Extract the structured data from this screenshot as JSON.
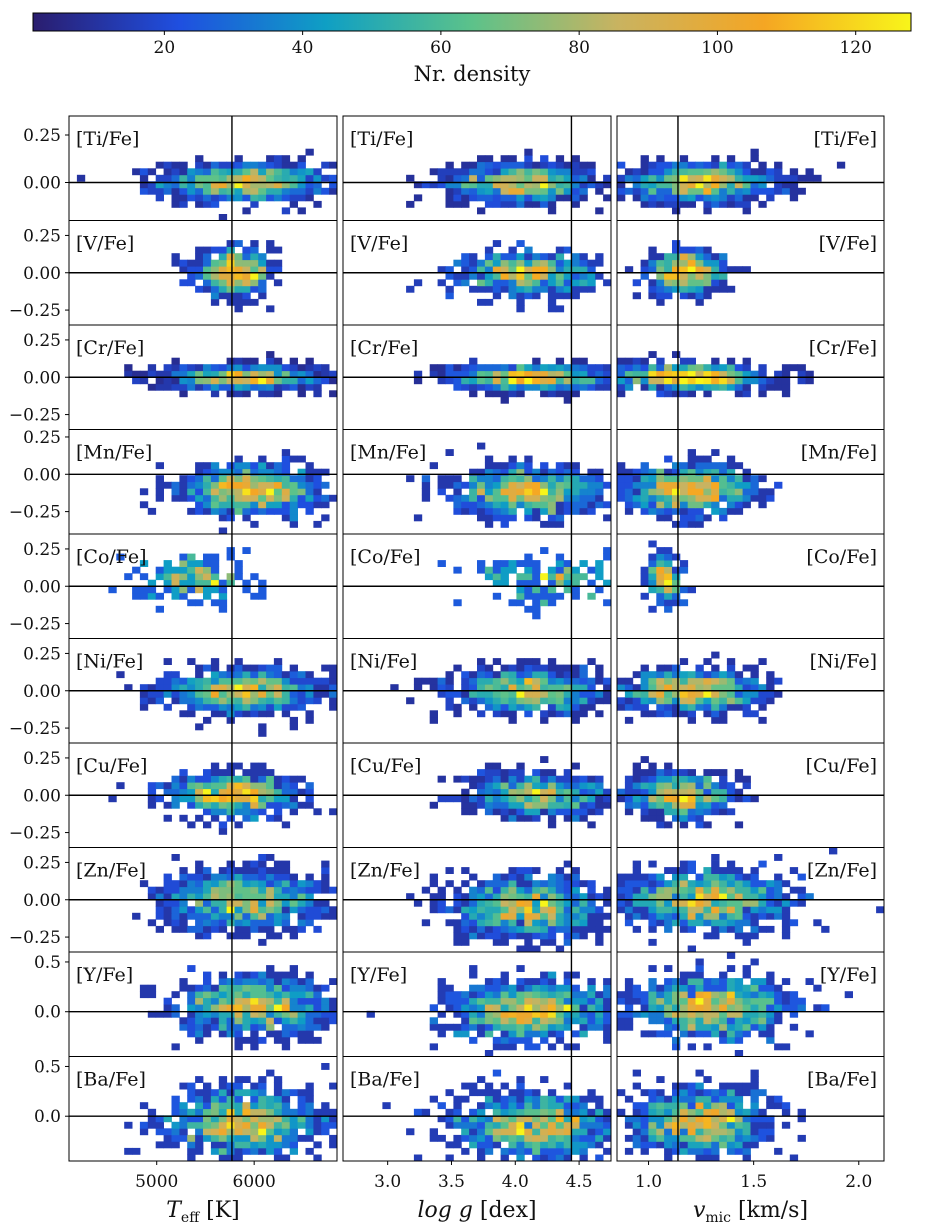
{
  "chart_data": {
    "type": "heatmap",
    "colorbar": {
      "label": "Nr. density",
      "ticks": [
        20,
        40,
        60,
        80,
        100,
        120
      ],
      "range": [
        1,
        128
      ],
      "colormap": [
        "#2a1d6e",
        "#1f4fe0",
        "#0f9fc4",
        "#5cc28a",
        "#c9b360",
        "#f5a623",
        "#f8f51a"
      ]
    },
    "columns": [
      {
        "name": "teff",
        "xlabel_main": "T",
        "xlabel_sub": "eff",
        "xlabel_unit": " [K]",
        "xlim": [
          4100,
          6850
        ],
        "xticks": [
          5000,
          6000
        ],
        "ref": 5772
      },
      {
        "name": "logg",
        "xlabel_main": "log g",
        "xlabel_sub": "",
        "xlabel_unit": " [dex]",
        "xlim": [
          2.65,
          4.75
        ],
        "xticks": [
          3.0,
          3.5,
          4.0,
          4.5
        ],
        "ref": 4.44
      },
      {
        "name": "vmic",
        "xlabel_main": "v",
        "xlabel_sub": "mic",
        "xlabel_unit": " [km/s]",
        "xlim": [
          0.85,
          2.12
        ],
        "xticks": [
          1.0,
          1.5,
          2.0
        ],
        "ref": 1.14
      }
    ],
    "rows": [
      {
        "element": "[Ti/Fe]",
        "ylim": [
          -0.2,
          0.35
        ],
        "yticks": [
          0.25,
          0.0
        ],
        "ytick_labels": [
          "0.25",
          "0.00"
        ],
        "spread": 0.07,
        "centers": [
          [
            5900,
            0.0
          ],
          [
            4.05,
            0.0
          ],
          [
            1.25,
            0.0
          ]
        ],
        "widths": [
          [
            420,
            0.05
          ],
          [
            0.28,
            0.05
          ],
          [
            0.18,
            0.05
          ]
        ],
        "n": 900
      },
      {
        "element": "[V/Fe]",
        "ylim": [
          -0.35,
          0.35
        ],
        "yticks": [
          0.25,
          0.0,
          -0.25
        ],
        "ytick_labels": [
          "0.25",
          "0.00",
          "−0.25"
        ],
        "spread": 0.06,
        "centers": [
          [
            5800,
            0.0
          ],
          [
            4.1,
            0.0
          ],
          [
            1.18,
            0.0
          ]
        ],
        "widths": [
          [
            200,
            0.07
          ],
          [
            0.25,
            0.07
          ],
          [
            0.09,
            0.07
          ]
        ],
        "n": 500
      },
      {
        "element": "[Cr/Fe]",
        "ylim": [
          -0.35,
          0.35
        ],
        "yticks": [
          0.25,
          0.0,
          -0.25
        ],
        "ytick_labels": [
          "0.25",
          "0.00",
          "−0.25"
        ],
        "spread": 0.05,
        "centers": [
          [
            5900,
            0.0
          ],
          [
            4.1,
            0.0
          ],
          [
            1.2,
            0.0
          ]
        ],
        "widths": [
          [
            380,
            0.04
          ],
          [
            0.3,
            0.04
          ],
          [
            0.17,
            0.04
          ]
        ],
        "n": 900
      },
      {
        "element": "[Mn/Fe]",
        "ylim": [
          -0.4,
          0.3
        ],
        "yticks": [
          0.25,
          0.0,
          -0.25
        ],
        "ytick_labels": [
          "0.25",
          "0.00",
          "−0.25"
        ],
        "spread": 0.07,
        "centers": [
          [
            6000,
            -0.1
          ],
          [
            4.1,
            -0.12
          ],
          [
            1.2,
            -0.1
          ]
        ],
        "widths": [
          [
            350,
            0.08
          ],
          [
            0.3,
            0.08
          ],
          [
            0.15,
            0.08
          ]
        ],
        "n": 800
      },
      {
        "element": "[Co/Fe]",
        "ylim": [
          -0.35,
          0.35
        ],
        "yticks": [
          0.25,
          0.0,
          -0.25
        ],
        "ytick_labels": [
          "0.25",
          "0.00",
          "−0.25"
        ],
        "spread": 0.07,
        "centers": [
          [
            5400,
            0.05
          ],
          [
            4.3,
            0.05
          ],
          [
            1.08,
            0.05
          ]
        ],
        "widths": [
          [
            280,
            0.08
          ],
          [
            0.3,
            0.08
          ],
          [
            0.04,
            0.08
          ]
        ],
        "n": 160
      },
      {
        "element": "[Ni/Fe]",
        "ylim": [
          -0.35,
          0.35
        ],
        "yticks": [
          0.25,
          0.0,
          -0.25
        ],
        "ytick_labels": [
          "0.25",
          "0.00",
          "−0.25"
        ],
        "spread": 0.06,
        "centers": [
          [
            5900,
            0.0
          ],
          [
            4.1,
            0.0
          ],
          [
            1.2,
            0.0
          ]
        ],
        "widths": [
          [
            400,
            0.07
          ],
          [
            0.3,
            0.07
          ],
          [
            0.17,
            0.07
          ]
        ],
        "n": 850
      },
      {
        "element": "[Cu/Fe]",
        "ylim": [
          -0.35,
          0.35
        ],
        "yticks": [
          0.25,
          0.0,
          -0.25
        ],
        "ytick_labels": [
          "0.25",
          "0.00",
          "−0.25"
        ],
        "spread": 0.07,
        "centers": [
          [
            5800,
            0.0
          ],
          [
            4.2,
            0.0
          ],
          [
            1.15,
            0.0
          ]
        ],
        "widths": [
          [
            330,
            0.07
          ],
          [
            0.28,
            0.07
          ],
          [
            0.12,
            0.07
          ]
        ],
        "n": 700
      },
      {
        "element": "[Zn/Fe]",
        "ylim": [
          -0.35,
          0.35
        ],
        "yticks": [
          0.25,
          0.0,
          -0.25
        ],
        "ytick_labels": [
          "0.25",
          "0.00",
          "−0.25"
        ],
        "spread": 0.09,
        "centers": [
          [
            5900,
            0.0
          ],
          [
            4.1,
            -0.05
          ],
          [
            1.25,
            0.0
          ]
        ],
        "widths": [
          [
            420,
            0.1
          ],
          [
            0.3,
            0.1
          ],
          [
            0.2,
            0.1
          ]
        ],
        "n": 900
      },
      {
        "element": "[Y/Fe]",
        "ylim": [
          -0.45,
          0.6
        ],
        "yticks": [
          0.5,
          0.0
        ],
        "ytick_labels": [
          "0.5",
          "0.0"
        ],
        "spread": 0.14,
        "centers": [
          [
            6000,
            0.05
          ],
          [
            4.1,
            0.0
          ],
          [
            1.3,
            0.05
          ]
        ],
        "widths": [
          [
            380,
            0.15
          ],
          [
            0.3,
            0.15
          ],
          [
            0.18,
            0.15
          ]
        ],
        "n": 900
      },
      {
        "element": "[Ba/Fe]",
        "ylim": [
          -0.45,
          0.6
        ],
        "yticks": [
          0.5,
          0.0
        ],
        "ytick_labels": [
          "0.5",
          "0.0"
        ],
        "spread": 0.14,
        "centers": [
          [
            5900,
            -0.05
          ],
          [
            4.15,
            -0.1
          ],
          [
            1.25,
            -0.05
          ]
        ],
        "widths": [
          [
            400,
            0.16
          ],
          [
            0.3,
            0.16
          ],
          [
            0.16,
            0.16
          ]
        ],
        "n": 900
      }
    ]
  }
}
